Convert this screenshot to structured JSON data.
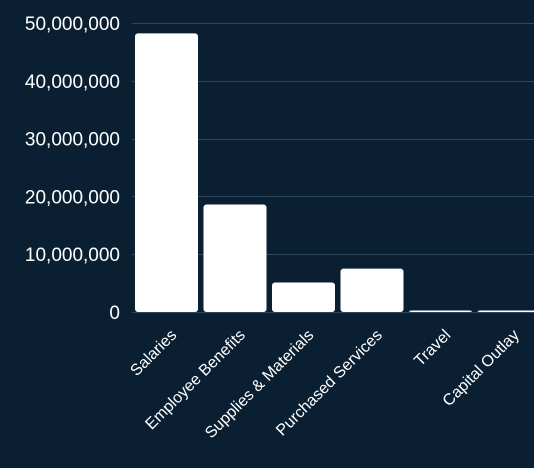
{
  "colors": {
    "background": "#0b1f33",
    "bar": "#ffffff",
    "text": "#ffffff",
    "grid": "#2c4560"
  },
  "chart_data": {
    "type": "bar",
    "title": "",
    "xlabel": "",
    "ylabel": "",
    "categories": [
      "Salaries",
      "Employee Benefits",
      "Supplies & Materials",
      "Purchased Services",
      "Travel",
      "Capital Outlay"
    ],
    "values": [
      48200000,
      18600000,
      5100000,
      7500000,
      150000,
      80000
    ],
    "ylim": [
      0,
      50000000
    ],
    "yticks": [
      0,
      10000000,
      20000000,
      30000000,
      40000000,
      50000000
    ],
    "ytick_labels": [
      "0",
      "10,000,000",
      "20,000,000",
      "30,000,000",
      "40,000,000",
      "50,000,000"
    ],
    "grid": true,
    "legend": "none"
  }
}
